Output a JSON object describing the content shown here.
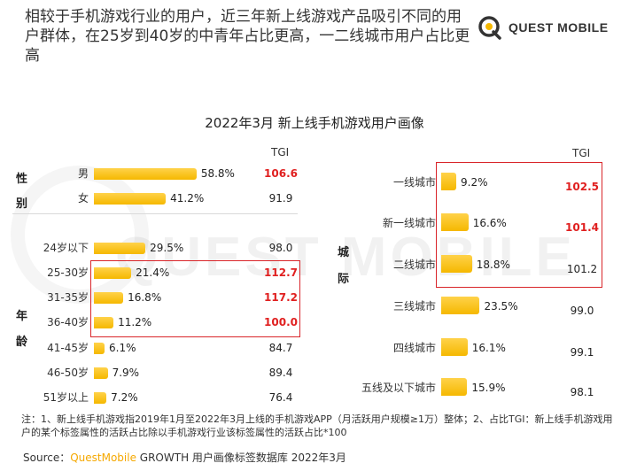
{
  "headline": "相较于手机游戏行业的用户，近三年新上线游戏产品吸引不同的用户群体，在25岁到40岁的中青年占比更高，一二线城市用户占比更高",
  "logo": {
    "text": "QUEST MOBILE",
    "icon": "questmobile-q-icon"
  },
  "watermark": "QUEST MOBILE",
  "colors": {
    "bar": "#f5b800",
    "highlight_text": "#e02020",
    "highlight_box": "#d9252a"
  },
  "chart_data": {
    "title": "2022年3月 新上线手机游戏用户画像",
    "charts": [
      {
        "type": "bar",
        "orientation": "horizontal",
        "tgi_header": "TGI",
        "groups": [
          {
            "label": "性别",
            "label_chars": [
              "性",
              "别"
            ],
            "categories": [
              "男",
              "女"
            ]
          },
          {
            "label": "年龄",
            "label_chars": [
              "年",
              "龄"
            ],
            "categories": [
              "24岁以下",
              "25-30岁",
              "31-35岁",
              "36-40岁",
              "41-45岁",
              "46-50岁",
              "51岁以上"
            ]
          }
        ],
        "categories": [
          "男",
          "女",
          "24岁以下",
          "25-30岁",
          "31-35岁",
          "36-40岁",
          "41-45岁",
          "46-50岁",
          "51岁以上"
        ],
        "values": [
          58.8,
          41.2,
          29.5,
          21.4,
          16.8,
          11.2,
          6.1,
          7.9,
          7.2
        ],
        "value_labels": [
          "58.8%",
          "41.2%",
          "29.5%",
          "21.4%",
          "16.8%",
          "11.2%",
          "6.1%",
          "7.9%",
          "7.2%"
        ],
        "tgi": [
          "106.6",
          "91.9",
          "98.0",
          "112.7",
          "117.2",
          "100.0",
          "84.7",
          "89.4",
          "76.4"
        ],
        "tgi_highlight": [
          true,
          false,
          false,
          true,
          true,
          true,
          false,
          false,
          false
        ],
        "highlighted_rows": [
          "25-30岁",
          "31-35岁",
          "36-40岁"
        ]
      },
      {
        "type": "bar",
        "orientation": "horizontal",
        "tgi_header": "TGI",
        "groups": [
          {
            "label": "城际",
            "label_chars": [
              "城",
              "际"
            ],
            "categories": [
              "一线城市",
              "新一线城市",
              "二线城市",
              "三线城市",
              "四线城市",
              "五线及以下城市"
            ]
          }
        ],
        "categories": [
          "一线城市",
          "新一线城市",
          "二线城市",
          "三线城市",
          "四线城市",
          "五线及以下城市"
        ],
        "values": [
          9.2,
          16.6,
          18.8,
          23.5,
          16.1,
          15.9
        ],
        "value_labels": [
          "9.2%",
          "16.6%",
          "18.8%",
          "23.5%",
          "16.1%",
          "15.9%"
        ],
        "tgi": [
          "102.5",
          "101.4",
          "101.2",
          "99.0",
          "99.1",
          "98.1"
        ],
        "tgi_highlight": [
          true,
          true,
          false,
          false,
          false,
          false
        ],
        "highlighted_rows": [
          "一线城市",
          "新一线城市",
          "二线城市"
        ]
      }
    ]
  },
  "footnote": "注：1、新上线手机游戏指2019年1月至2022年3月上线的手机游戏APP（月活跃用户规模≥1万）整体；2、占比TGI：新上线手机游戏用户的某个标签属性的活跃占比除以手机游戏行业该标签属性的活跃占比*100",
  "source": {
    "prefix": "Source：",
    "brand": "QuestMobile",
    "rest": " GROWTH 用户画像标签数据库 2022年3月"
  }
}
